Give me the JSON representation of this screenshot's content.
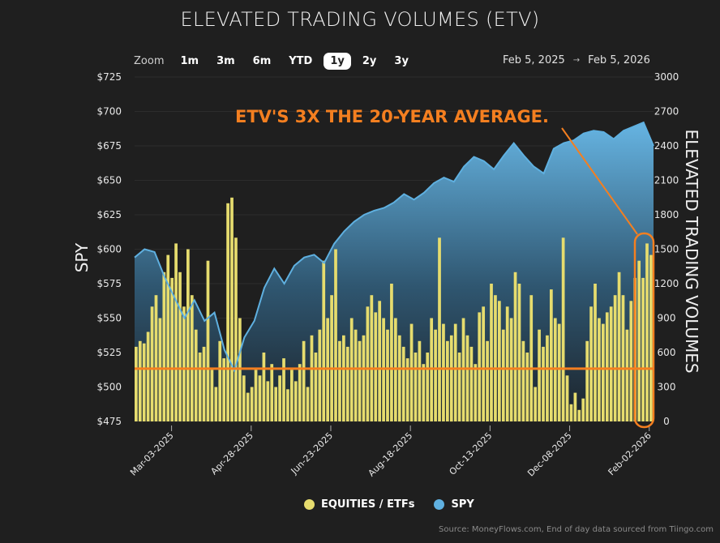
{
  "title": "ELEVATED TRADING VOLUMES (ETV)",
  "zoom": {
    "label": "Zoom",
    "options": [
      "1m",
      "3m",
      "6m",
      "YTD",
      "1y",
      "2y",
      "3y"
    ],
    "active": "1y"
  },
  "date_range": {
    "from": "Feb 5, 2025",
    "arrow": "→",
    "to": "Feb 5, 2026"
  },
  "colors": {
    "background": "#1f1f1f",
    "equities": "#e6dc6e",
    "spy": "#5fb0e0",
    "annotation": "#f47f20"
  },
  "chart_data": {
    "type": "bar+area",
    "x_range": [
      "2025-02-05",
      "2026-02-05"
    ],
    "x_ticks": [
      "Mar-03-2025",
      "Apr-28-2025",
      "Jun-23-2025",
      "Aug-18-2025",
      "Oct-13-2025",
      "Dec-08-2025",
      "Feb-02-2026"
    ],
    "left_axis": {
      "title": "SPY",
      "range": [
        475,
        725
      ],
      "ticks": [
        "$725",
        "$700",
        "$675",
        "$650",
        "$625",
        "$600",
        "$575",
        "$550",
        "$525",
        "$500",
        "$475"
      ]
    },
    "right_axis": {
      "title": "ELEVATED TRADING VOLUMES",
      "range": [
        0,
        3000
      ],
      "ticks": [
        "3000",
        "2700",
        "2400",
        "2100",
        "1800",
        "1500",
        "1200",
        "900",
        "600",
        "300",
        "0"
      ]
    },
    "grid": true,
    "legend_position": "bottom",
    "series": [
      {
        "name": "EQUITIES / ETFs",
        "type": "bar",
        "axis": "right",
        "values": [
          650,
          700,
          680,
          780,
          1000,
          1100,
          900,
          1300,
          1450,
          1250,
          1550,
          1300,
          1000,
          1500,
          1100,
          800,
          600,
          650,
          1400,
          450,
          300,
          700,
          550,
          1900,
          1950,
          1600,
          900,
          400,
          250,
          300,
          450,
          400,
          600,
          350,
          500,
          300,
          400,
          550,
          280,
          450,
          350,
          500,
          700,
          300,
          750,
          600,
          800,
          1400,
          900,
          1100,
          1500,
          700,
          750,
          650,
          900,
          800,
          700,
          750,
          1000,
          1100,
          950,
          1050,
          900,
          800,
          1200,
          900,
          750,
          650,
          550,
          850,
          600,
          700,
          500,
          600,
          900,
          800,
          1600,
          850,
          700,
          750,
          850,
          600,
          900,
          750,
          650,
          500,
          950,
          1000,
          700,
          1200,
          1100,
          1050,
          800,
          1000,
          900,
          1300,
          1200,
          700,
          600,
          1100,
          300,
          800,
          650,
          750,
          1150,
          900,
          850,
          1600,
          400,
          150,
          250,
          100,
          200,
          700,
          1000,
          1200,
          900,
          850,
          950,
          1000,
          1100,
          1300,
          1100,
          800,
          1050,
          1250,
          1400,
          1250,
          1550,
          1450
        ]
      },
      {
        "name": "SPY",
        "type": "area",
        "axis": "left",
        "values": [
          594,
          600,
          598,
          580,
          565,
          550,
          563,
          548,
          554,
          527,
          512,
          536,
          548,
          572,
          586,
          575,
          588,
          594,
          596,
          590,
          604,
          613,
          620,
          625,
          628,
          630,
          634,
          640,
          636,
          641,
          648,
          652,
          649,
          660,
          667,
          664,
          658,
          668,
          677,
          668,
          660,
          655,
          673,
          677,
          679,
          684,
          686,
          685,
          680,
          686,
          689,
          692,
          675
        ]
      }
    ],
    "reference_line": {
      "axis": "right",
      "value": 460
    },
    "annotation": "ETV'S 3X THE 20-YEAR AVERAGE."
  },
  "source": "Source: MoneyFlows.com, End of day data sourced from Tiingo.com"
}
